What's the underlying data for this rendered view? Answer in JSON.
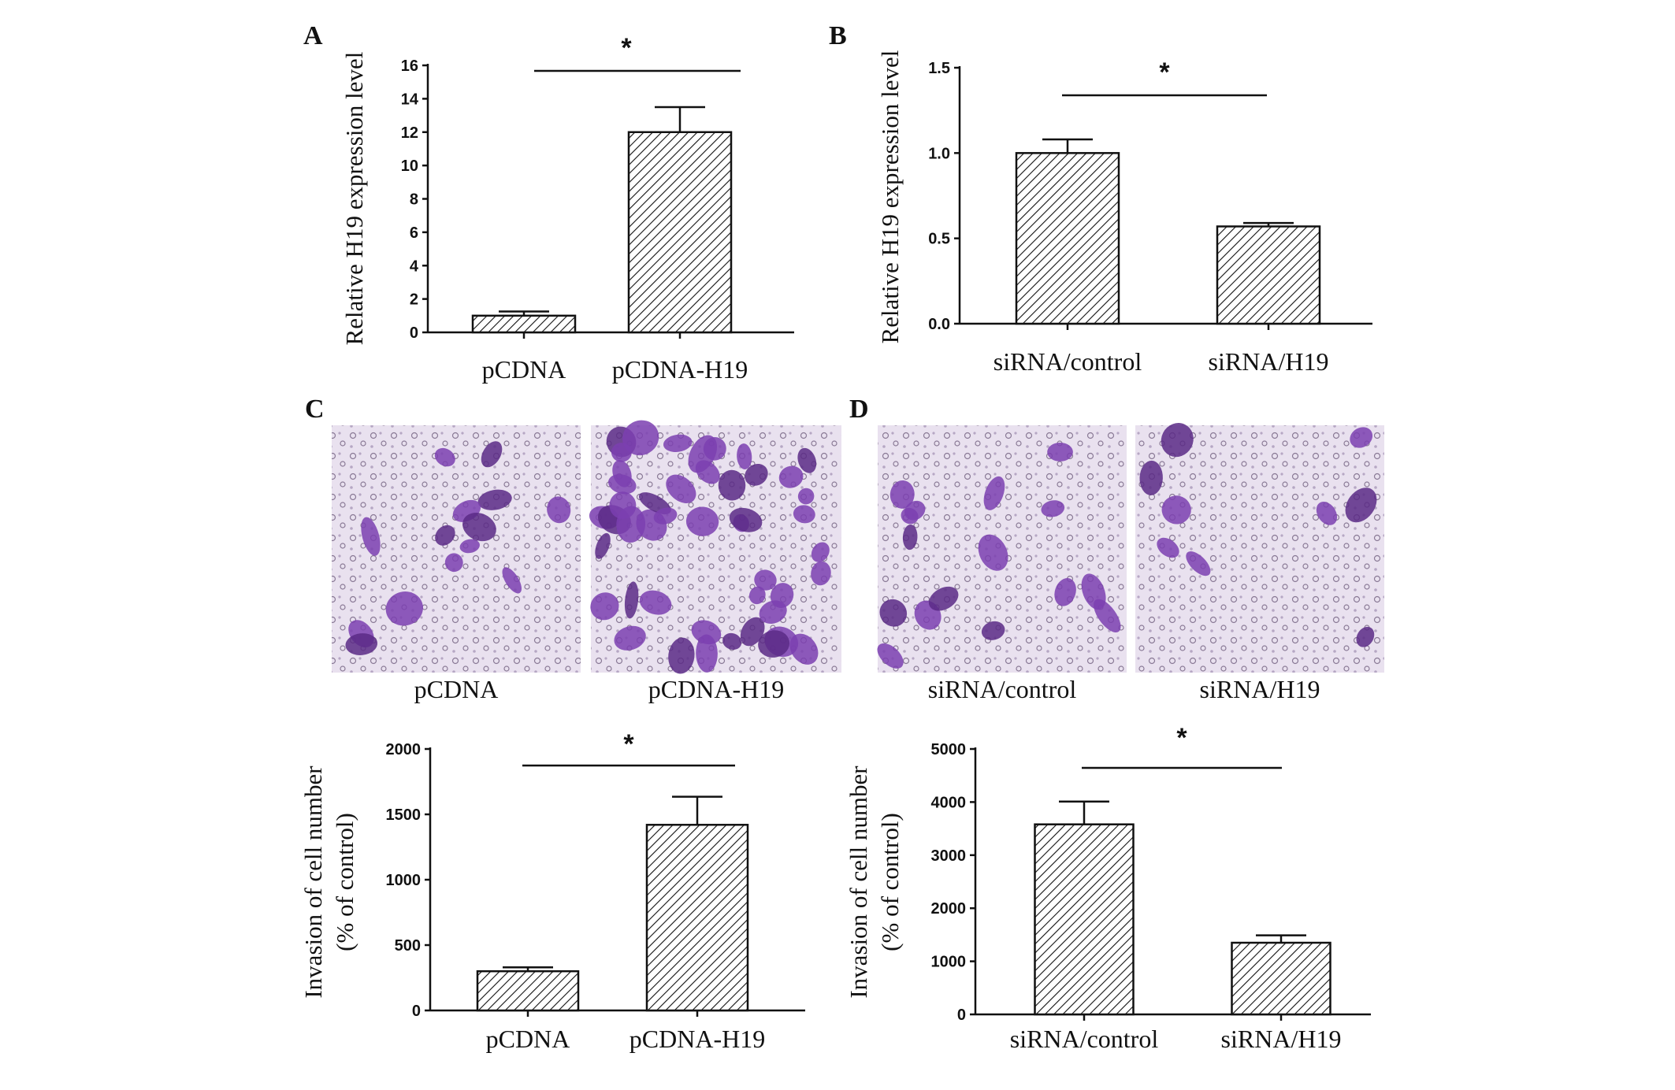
{
  "colors": {
    "bar_fill_pattern": "diagonal-hatch",
    "axis": "#111111",
    "stain_purple": "#7b3fb0",
    "stain_background": "#e7dfee"
  },
  "panels": {
    "A": {
      "letter": "A"
    },
    "B": {
      "letter": "B"
    },
    "C": {
      "letter": "C",
      "images": [
        "pCDNA",
        "pCDNA-H19"
      ]
    },
    "D": {
      "letter": "D",
      "images": [
        "siRNA/control",
        "siRNA/H19"
      ]
    }
  },
  "chart_data": [
    {
      "id": "A",
      "type": "bar",
      "categories": [
        "pCDNA",
        "pCDNA-H19"
      ],
      "values": [
        1,
        12
      ],
      "errors": [
        0.25,
        1.5
      ],
      "ylabel": "Relative H19 expression level",
      "ylim": [
        0,
        16
      ],
      "yticks": [
        "0",
        "2",
        "4",
        "6",
        "8",
        "10",
        "12",
        "14",
        "16"
      ],
      "significance": "*"
    },
    {
      "id": "B",
      "type": "bar",
      "categories": [
        "siRNA/control",
        "siRNA/H19"
      ],
      "values": [
        1.0,
        0.57
      ],
      "errors": [
        0.08,
        0.02
      ],
      "ylabel": "Relative H19 expression level",
      "ylim": [
        0,
        1.5
      ],
      "yticks": [
        "0.0",
        "0.5",
        "1.0",
        "1.5"
      ],
      "significance": "*"
    },
    {
      "id": "C",
      "type": "bar",
      "categories": [
        "pCDNA",
        "pCDNA-H19"
      ],
      "values": [
        300,
        1420
      ],
      "errors": [
        30,
        215
      ],
      "ylabel": [
        "Invasion of cell number",
        "(% of control)"
      ],
      "ylim": [
        0,
        2000
      ],
      "yticks": [
        "0",
        "500",
        "1000",
        "1500",
        "2000"
      ],
      "significance": "*"
    },
    {
      "id": "D",
      "type": "bar",
      "categories": [
        "siRNA/control",
        "siRNA/H19"
      ],
      "values": [
        3580,
        1350
      ],
      "errors": [
        430,
        140
      ],
      "ylabel": [
        "Invasion of cell number",
        "(% of control)"
      ],
      "ylim": [
        0,
        5000
      ],
      "yticks": [
        "0",
        "1000",
        "2000",
        "3000",
        "4000",
        "5000"
      ],
      "significance": "*"
    }
  ]
}
